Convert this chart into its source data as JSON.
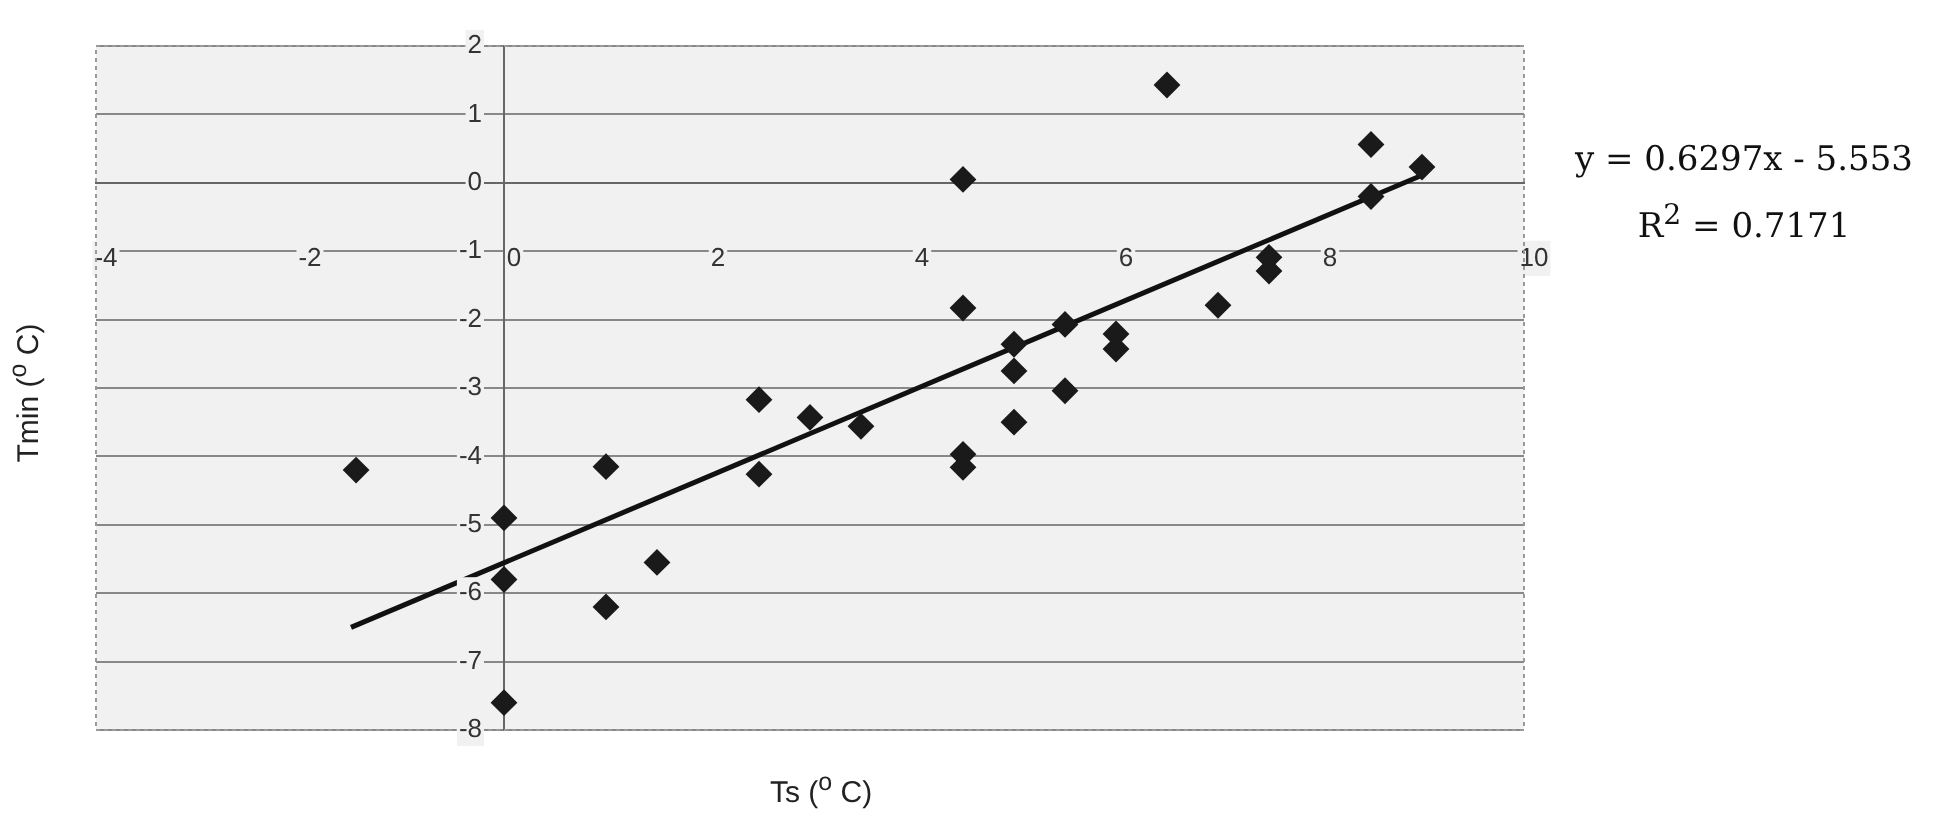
{
  "chart_data": {
    "type": "scatter",
    "xlabel": "Ts ($^{o}$ C)",
    "ylabel": "Tmin ($^{o}$ C)",
    "xlim": [
      -4,
      10
    ],
    "xticks": [
      -4,
      -2,
      0,
      2,
      4,
      6,
      8,
      10
    ],
    "ylim": [
      -8,
      2
    ],
    "yticks": [
      -8,
      -7,
      -6,
      -5,
      -4,
      -3,
      -2,
      -1,
      0,
      1,
      2
    ],
    "grid": "y",
    "marker": "diamond",
    "series": [
      {
        "type": "scatter",
        "color": "#1a1a1a",
        "x": [
          -1.45,
          0,
          0,
          0,
          1.0,
          1.0,
          1.5,
          2.5,
          2.5,
          3.0,
          3.5,
          4.5,
          4.5,
          4.5,
          4.5,
          5.0,
          5.0,
          5.0,
          5.5,
          5.5,
          6.0,
          6.0,
          6.5,
          7.0,
          7.5,
          7.5,
          8.5,
          8.5,
          9.0
        ],
        "values": [
          -4.2,
          -4.9,
          -5.8,
          -7.6,
          -4.15,
          -6.2,
          -5.55,
          -3.17,
          -4.26,
          -3.43,
          -3.56,
          0.05,
          -1.83,
          -3.97,
          -4.16,
          -2.36,
          -2.75,
          -3.5,
          -2.07,
          -3.04,
          -2.21,
          -2.43,
          1.43,
          -1.79,
          -1.09,
          -1.29,
          0.56,
          -0.2,
          0.23
        ]
      },
      {
        "type": "line",
        "marker": "none",
        "color": "#111111",
        "x": [
          -1.5,
          9.0
        ],
        "values": [
          -6.5,
          0.11
        ]
      }
    ],
    "annotations": [
      "y = 0.6297x - 5.553",
      "R$^{2}$ = 0.7171"
    ]
  }
}
